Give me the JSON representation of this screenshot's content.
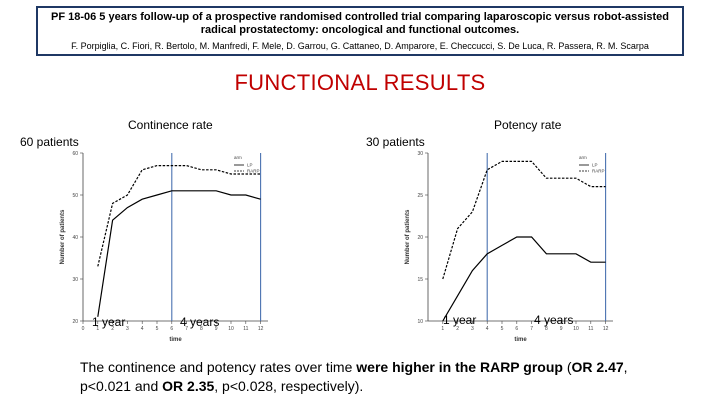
{
  "header": {
    "title": "PF 18-06 5 years follow-up of a prospective randomised controlled trial comparing laparoscopic versus robot-assisted radical prostatectomy: oncological and functional outcomes.",
    "authors": "F. Porpiglia, C. Fiori, R. Bertolo, M. Manfredi, F. Mele, D. Garrou, G. Cattaneo, D. Amparore, E. Checcucci, S. De Luca, R. Passera, R. M. Scarpa"
  },
  "section_title": "FUNCTIONAL RESULTS",
  "left_panel": {
    "title": "Continence rate",
    "patients_label": "60 patients",
    "marker1": "1 year",
    "marker2": "4 years"
  },
  "right_panel": {
    "title": "Potency rate",
    "patients_label": "30 patients",
    "marker1": "1 year",
    "marker2": "4 years"
  },
  "conclusion": {
    "t1": "The continence and potency rates over time ",
    "b1": "were higher in the RARP group",
    "t2": " (",
    "b2": "OR 2.47",
    "t3": ", p<0.021 and ",
    "b3": "OR 2.35",
    "t4": ", p<0.028, respectively)."
  },
  "chart_data": [
    {
      "type": "line",
      "title": "Continence rate",
      "xlabel": "time",
      "ylabel": "Number of patients",
      "xlim": [
        0,
        12.5
      ],
      "ylim": [
        20,
        60
      ],
      "xticks": [
        0,
        1,
        2,
        3,
        4,
        5,
        6,
        7,
        8,
        9,
        10,
        11,
        12
      ],
      "yticks": [
        20,
        30,
        40,
        50,
        60
      ],
      "vlines": [
        6,
        12
      ],
      "legend": {
        "title": "arm",
        "position": "top-right"
      },
      "series": [
        {
          "name": "LP",
          "style": "solid",
          "color": "#000000",
          "x": [
            1,
            2,
            3,
            4,
            5,
            6,
            7,
            8,
            9,
            10,
            11,
            12
          ],
          "values": [
            21,
            44,
            47,
            49,
            50,
            51,
            51,
            51,
            51,
            50,
            50,
            49
          ]
        },
        {
          "name": "RARP",
          "style": "dashed",
          "color": "#000000",
          "x": [
            1,
            2,
            3,
            4,
            5,
            6,
            7,
            8,
            9,
            10,
            11,
            12
          ],
          "values": [
            33,
            48,
            50,
            56,
            57,
            57,
            57,
            56,
            56,
            55,
            55,
            55
          ]
        }
      ]
    },
    {
      "type": "line",
      "title": "Potency rate",
      "xlabel": "time",
      "ylabel": "Number of patients",
      "xlim": [
        0,
        12.5
      ],
      "ylim": [
        10,
        30
      ],
      "xticks": [
        1,
        2,
        3,
        4,
        5,
        6,
        7,
        8,
        9,
        10,
        11,
        12
      ],
      "yticks": [
        10,
        15,
        20,
        25,
        30
      ],
      "vlines": [
        4,
        12
      ],
      "legend": {
        "title": "arm",
        "position": "top-right"
      },
      "series": [
        {
          "name": "LP",
          "style": "solid",
          "color": "#000000",
          "x": [
            1,
            2,
            3,
            4,
            5,
            6,
            7,
            8,
            9,
            10,
            11,
            12
          ],
          "values": [
            10,
            13,
            16,
            18,
            19,
            20,
            20,
            18,
            18,
            18,
            17,
            17
          ]
        },
        {
          "name": "RARP",
          "style": "dashed",
          "color": "#000000",
          "x": [
            1,
            2,
            3,
            4,
            5,
            6,
            7,
            8,
            9,
            10,
            11,
            12
          ],
          "values": [
            15,
            21,
            23,
            28,
            29,
            29,
            29,
            27,
            27,
            27,
            26,
            26
          ]
        }
      ]
    }
  ]
}
